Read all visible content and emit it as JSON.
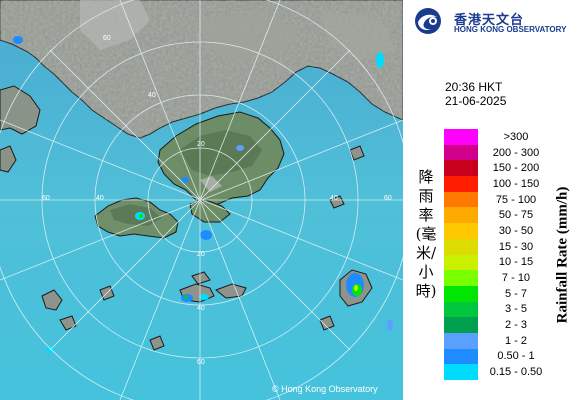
{
  "header": {
    "org_cn": "香港天文台",
    "org_en": "HONG KONG OBSERVATORY",
    "time": "20:36 HKT",
    "date": "21-06-2025"
  },
  "legend": {
    "title_cn": "降雨率(毫米/小時)",
    "title_en": "Rainfall Rate (mm/h)",
    "items": [
      {
        "label": ">300",
        "color": "#ff00ff"
      },
      {
        "label": "200 - 300",
        "color": "#d0008c"
      },
      {
        "label": "150 - 200",
        "color": "#c8001e"
      },
      {
        "label": "100 - 150",
        "color": "#ff1e00"
      },
      {
        "label": "75 - 100",
        "color": "#ff7800"
      },
      {
        "label": "50 - 75",
        "color": "#ffaa00"
      },
      {
        "label": "30 - 50",
        "color": "#ffc800"
      },
      {
        "label": "15 - 30",
        "color": "#dcdc00"
      },
      {
        "label": "10 - 15",
        "color": "#c8f000"
      },
      {
        "label": "7 - 10",
        "color": "#78ff00"
      },
      {
        "label": "5 - 7",
        "color": "#00e600"
      },
      {
        "label": "3 - 5",
        "color": "#00c83c"
      },
      {
        "label": "2 - 3",
        "color": "#00a050"
      },
      {
        "label": "1 - 2",
        "color": "#5aa0ff"
      },
      {
        "label": "0.50 - 1",
        "color": "#1e8cff"
      },
      {
        "label": "0.15 - 0.50",
        "color": "#00dcff"
      }
    ]
  },
  "map": {
    "range_labels": [
      "60",
      "40",
      "20",
      "20",
      "40",
      "60",
      "60",
      "40",
      "40",
      "60"
    ],
    "copyright": "© Hong Kong Observatory",
    "colors": {
      "sea": "#4fb8d8",
      "land": "#8e938c",
      "coast": "#1a1a1a",
      "rings": "#e8f4f8"
    }
  }
}
